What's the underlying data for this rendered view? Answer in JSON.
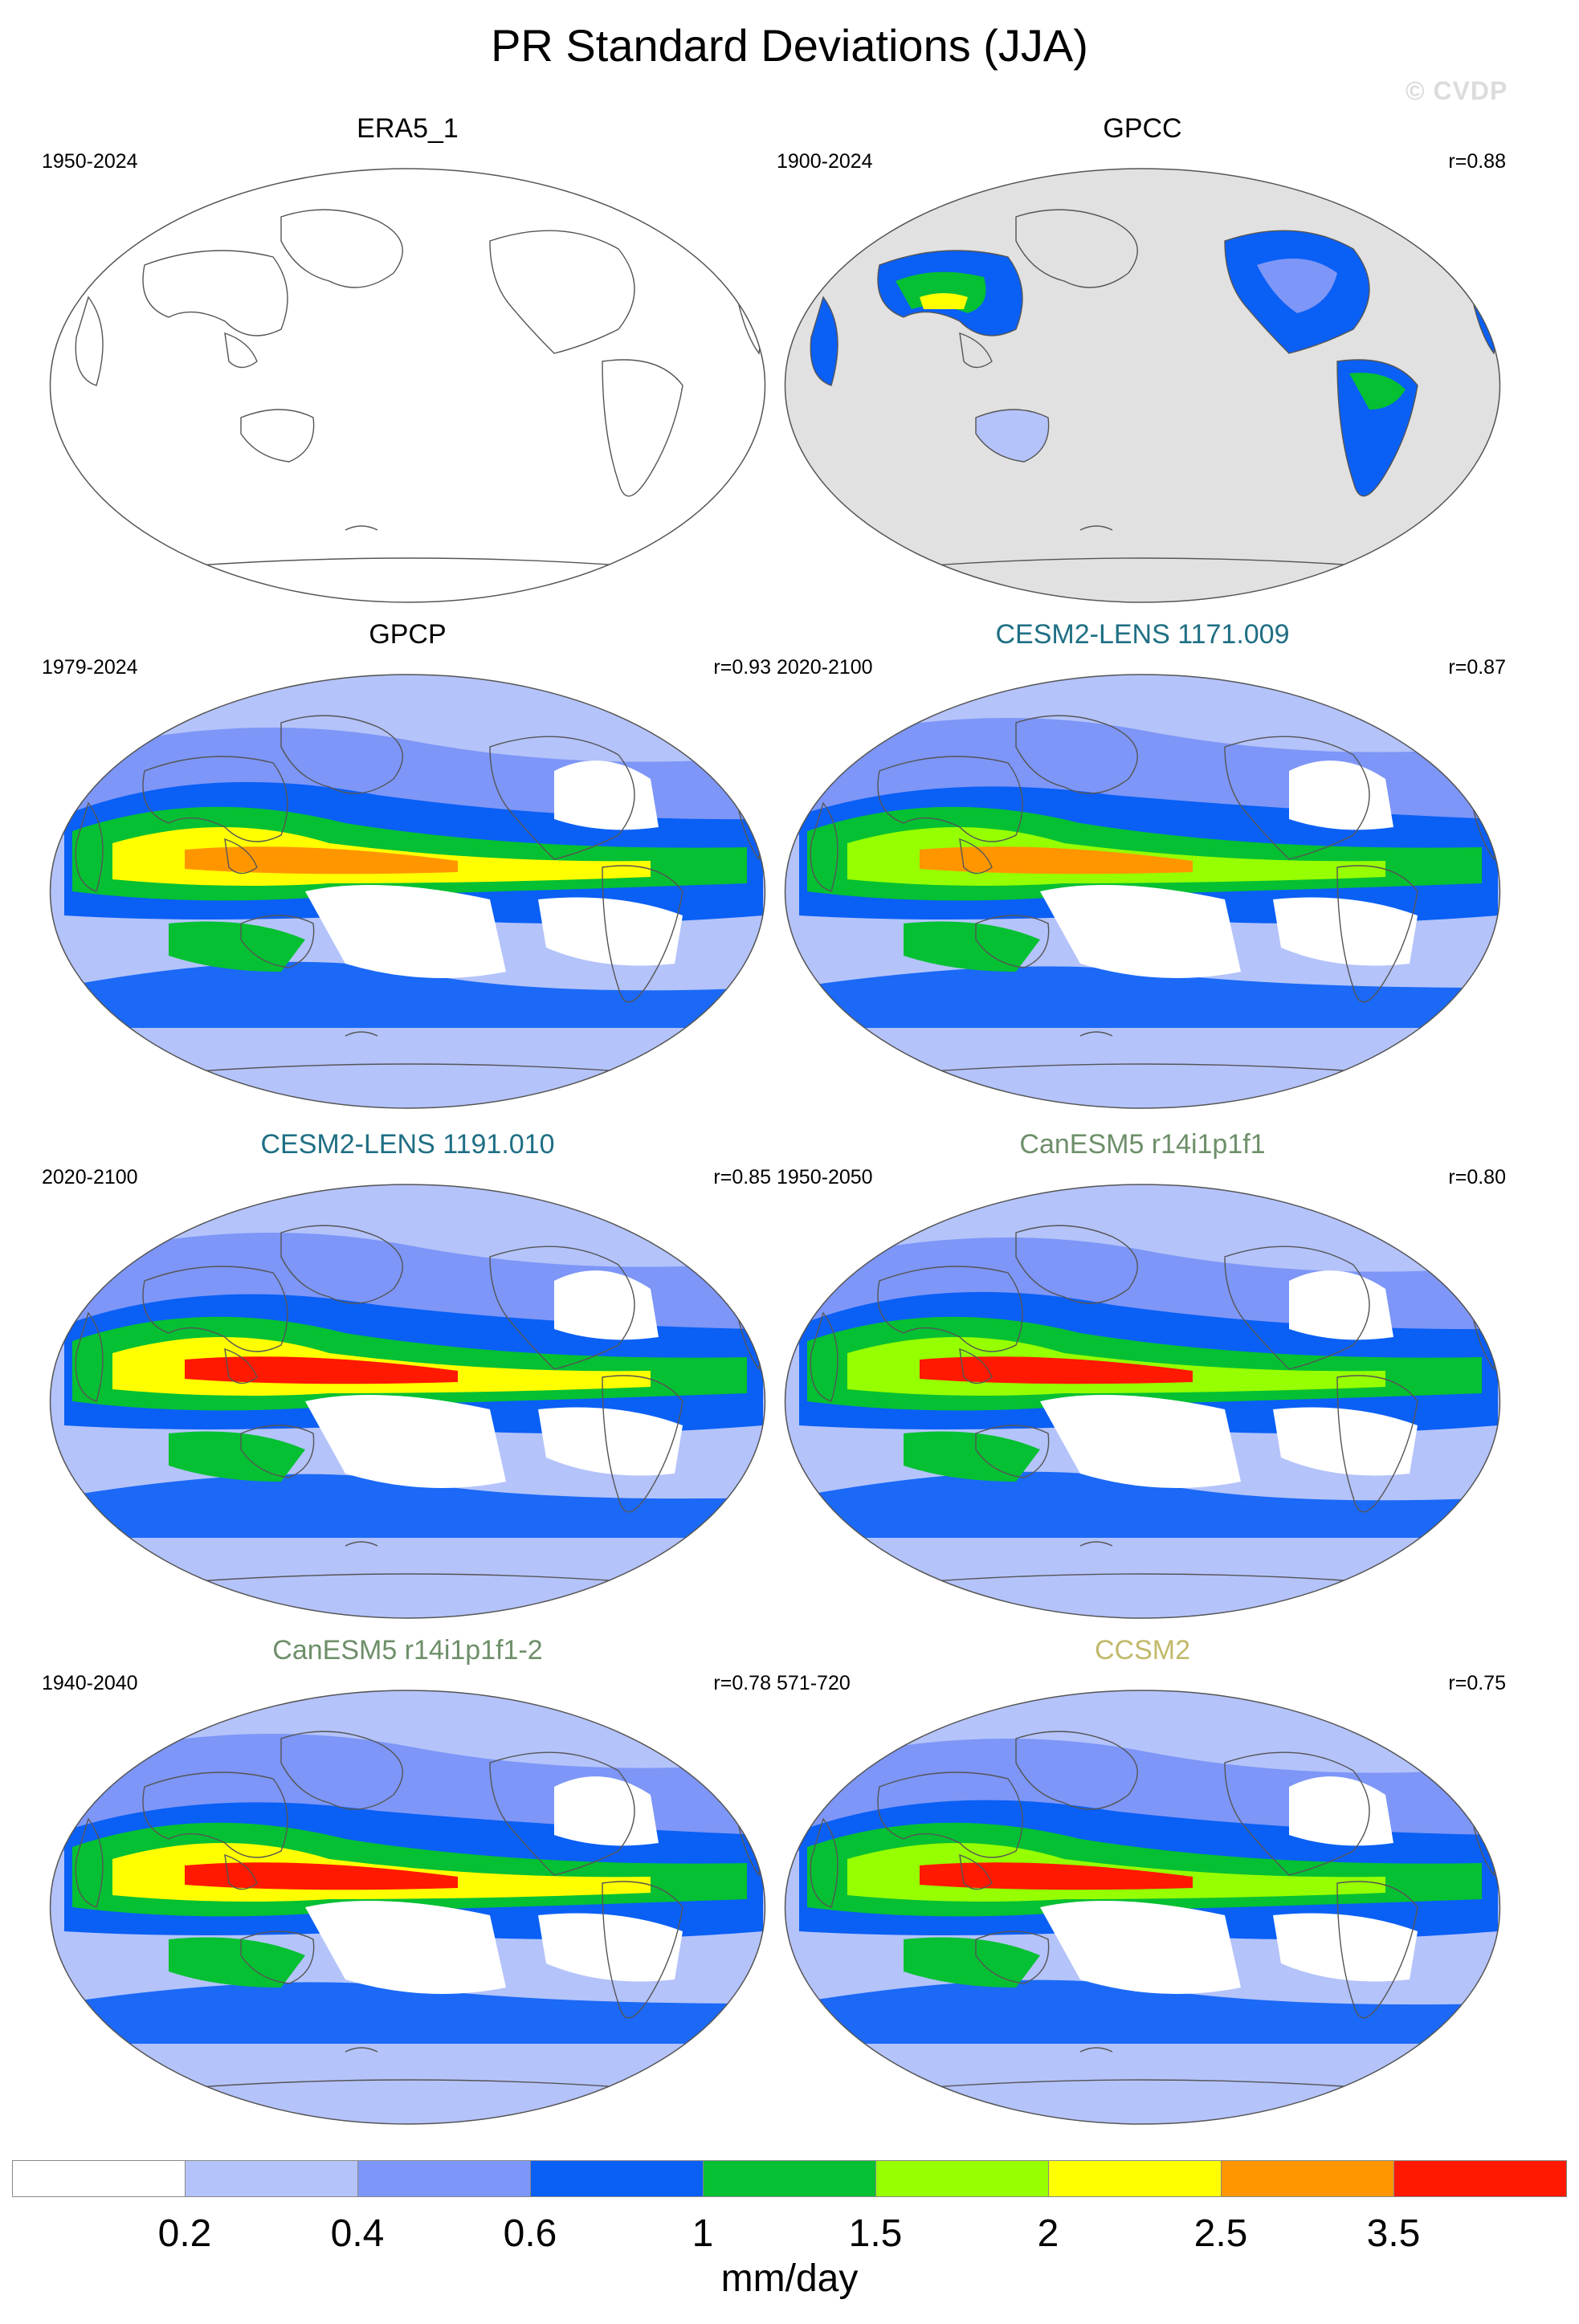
{
  "title": "PR Standard Deviations (JJA)",
  "watermark": "© CVDP",
  "panels": [
    {
      "title": "ERA5_1",
      "years": "1950-2024",
      "r": "",
      "title_color": "#000000",
      "fill": "none"
    },
    {
      "title": "GPCC",
      "years": "1900-2024",
      "r": "r=0.88",
      "title_color": "#000000",
      "fill": "land"
    },
    {
      "title": "GPCP",
      "years": "1979-2024",
      "r": "r=0.93",
      "title_color": "#000000",
      "fill": "global"
    },
    {
      "title": "CESM2-LENS 1171.009",
      "years": "2020-2100",
      "r": "r=0.87",
      "title_color": "#1f6f84",
      "fill": "global"
    },
    {
      "title": "CESM2-LENS 1191.010",
      "years": "2020-2100",
      "r": "r=0.85",
      "title_color": "#1f6f84",
      "fill": "global"
    },
    {
      "title": "CanESM5 r14i1p1f1",
      "years": "1950-2050",
      "r": "r=0.80",
      "title_color": "#6e8f6a",
      "fill": "global"
    },
    {
      "title": "CanESM5 r14i1p1f1-2",
      "years": "1940-2040",
      "r": "r=0.78",
      "title_color": "#6e8f6a",
      "fill": "global"
    },
    {
      "title": "CCSM2",
      "years": "571-720",
      "r": "r=0.75",
      "title_color": "#c2b96c",
      "fill": "global"
    }
  ],
  "colorbar": {
    "colors": [
      "#ffffff",
      "#b4c3fa",
      "#7d96f7",
      "#0a5ff5",
      "#05c032",
      "#96ff00",
      "#ffff00",
      "#ff9600",
      "#ff1900"
    ],
    "labels": [
      "0.2",
      "0.4",
      "0.6",
      "1",
      "1.5",
      "2",
      "2.5",
      "3.5"
    ],
    "units": "mm/day"
  }
}
